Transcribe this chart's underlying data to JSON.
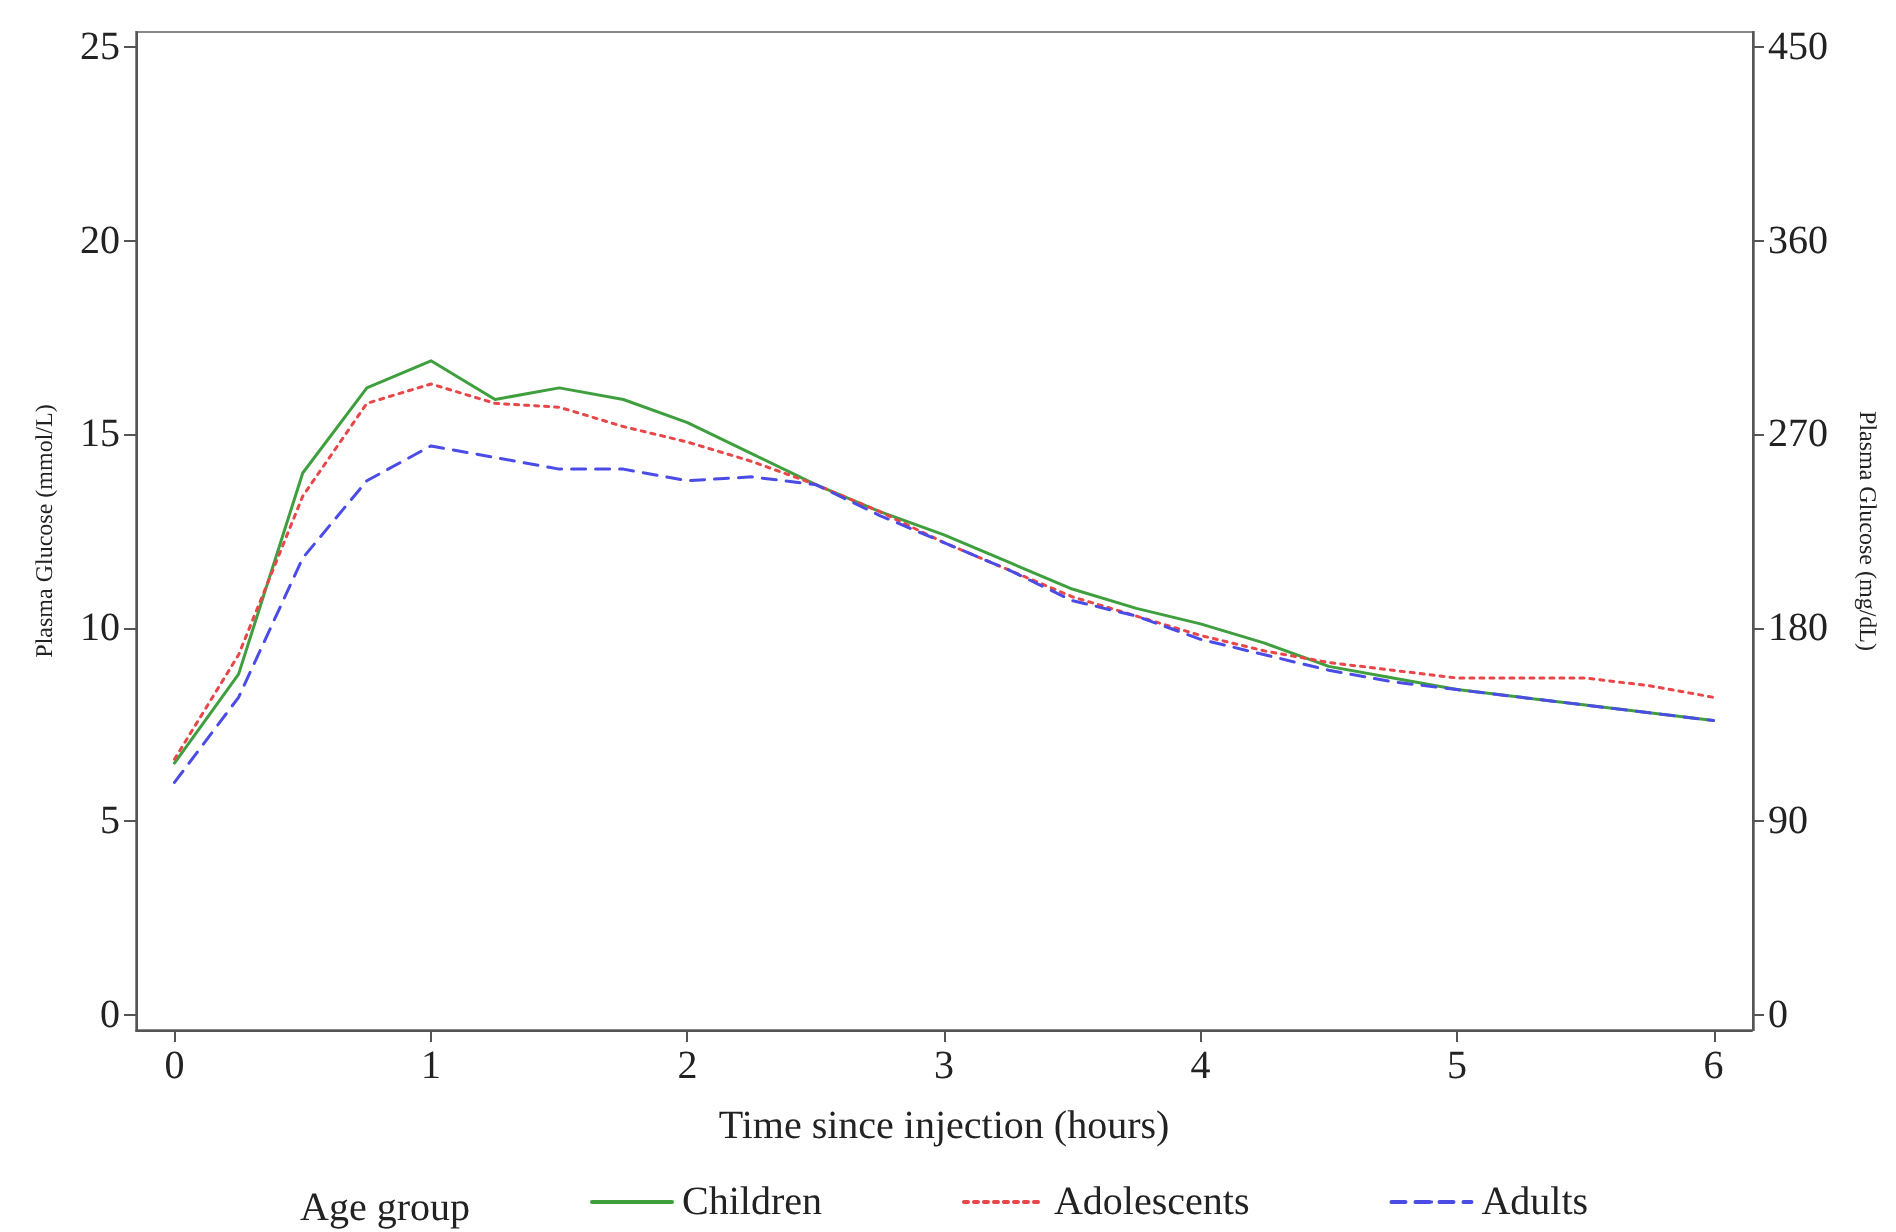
{
  "chart_data": {
    "type": "line",
    "xlabel": "Time since injection (hours)",
    "ylabel": "Plasma Glucose (mmol/L)",
    "y2label": "Plasma Glucose (mg/dL)",
    "legend_title": "Age group",
    "legend": "bottom",
    "grid": false,
    "marker": "none",
    "x": [
      0,
      0.25,
      0.5,
      0.75,
      1,
      1.25,
      1.5,
      1.75,
      2,
      2.25,
      2.5,
      2.75,
      3,
      3.25,
      3.5,
      3.75,
      4,
      4.25,
      4.5,
      4.75,
      5,
      5.25,
      5.5,
      5.75,
      6
    ],
    "xlim": [
      -0.15,
      6.15
    ],
    "xticks": [
      0,
      1,
      2,
      3,
      4,
      5,
      6
    ],
    "ylim": [
      -0.4,
      25.4
    ],
    "yticks": [
      0,
      5,
      10,
      15,
      20,
      25
    ],
    "y2lim": [
      -7.2,
      457.2
    ],
    "y2ticks": [
      0,
      90,
      180,
      270,
      360,
      450
    ],
    "series": [
      {
        "name": "Children",
        "color": "#3f9f3f",
        "line_style": "solid",
        "values": [
          6.5,
          8.8,
          14.0,
          16.2,
          16.9,
          15.9,
          16.2,
          15.9,
          15.3,
          14.5,
          13.7,
          13.0,
          12.4,
          11.7,
          11.0,
          10.5,
          10.1,
          9.6,
          9.0,
          8.7,
          8.4,
          8.2,
          8.0,
          7.8,
          7.6
        ]
      },
      {
        "name": "Adolescents",
        "color": "#e8474a",
        "line_style": "dotted",
        "values": [
          6.6,
          9.3,
          13.4,
          15.8,
          16.3,
          15.8,
          15.7,
          15.2,
          14.8,
          14.3,
          13.7,
          13.0,
          12.2,
          11.5,
          10.8,
          10.3,
          9.8,
          9.4,
          9.1,
          8.9,
          8.7,
          8.7,
          8.7,
          8.5,
          8.2
        ]
      },
      {
        "name": "Adults",
        "color": "#4b4be6",
        "line_style": "dashed",
        "values": [
          6.0,
          8.2,
          11.8,
          13.8,
          14.7,
          14.4,
          14.1,
          14.1,
          13.8,
          13.9,
          13.7,
          12.9,
          12.2,
          11.5,
          10.7,
          10.3,
          9.7,
          9.3,
          8.9,
          8.6,
          8.4,
          8.2,
          8.0,
          7.8,
          7.6
        ]
      }
    ]
  }
}
